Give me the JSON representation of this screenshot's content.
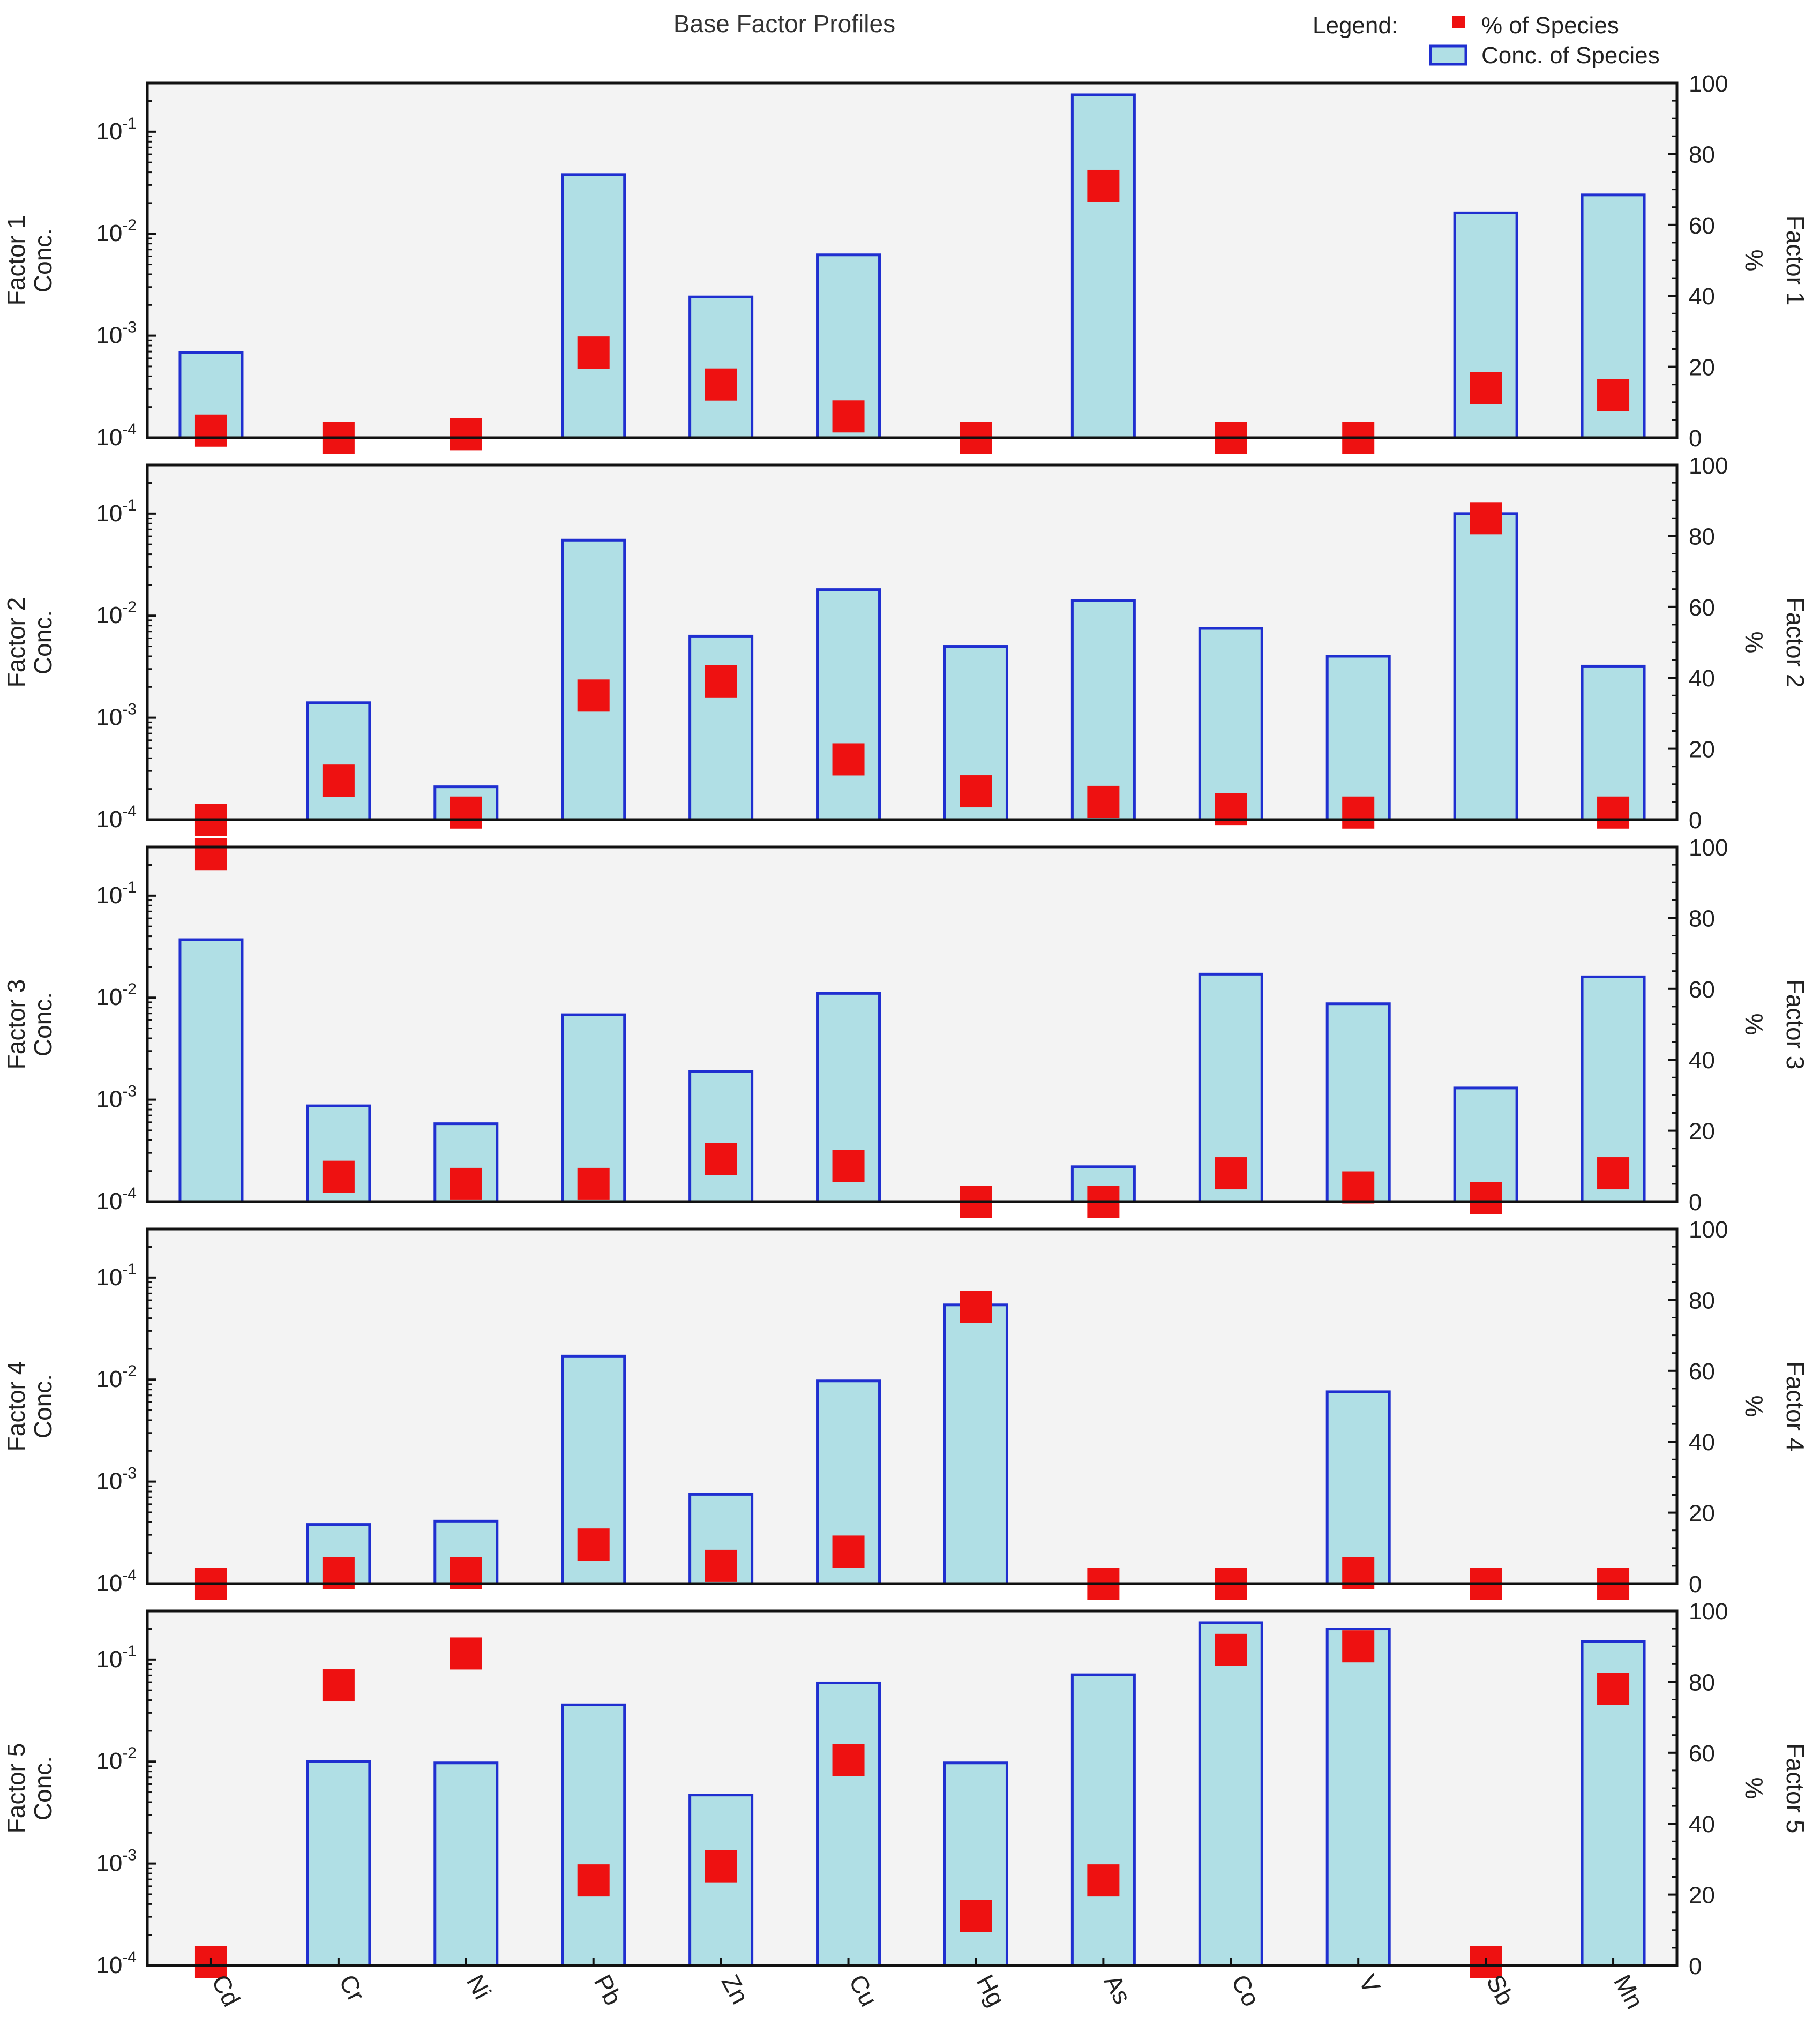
{
  "chart_data": {
    "type": "bar",
    "title": "Base Factor Profiles",
    "legend": {
      "label": "Legend:",
      "items": [
        {
          "name": "% of Species",
          "marker": "square",
          "color": "#ee1111"
        },
        {
          "name": "Conc. of Species",
          "marker": "bar",
          "fill": "#b0dfe5",
          "stroke": "#1f2fd0"
        }
      ],
      "placement": "top-right"
    },
    "categories": [
      "Cd",
      "Cr",
      "Ni",
      "Pb",
      "Zn",
      "Cu",
      "Hg",
      "As",
      "Co",
      "V",
      "Sb",
      "Mn"
    ],
    "left_axis": {
      "scale": "log",
      "range": [
        0.0001,
        0.3
      ],
      "tick_values": [
        0.0001,
        0.001,
        0.01,
        0.1
      ],
      "tick_labels": [
        {
          "base": "10",
          "exp": "-4"
        },
        {
          "base": "10",
          "exp": "-3"
        },
        {
          "base": "10",
          "exp": "-2"
        },
        {
          "base": "10",
          "exp": "-1"
        }
      ]
    },
    "right_axis": {
      "scale": "linear",
      "range": [
        0,
        100
      ],
      "ticks": [
        "0",
        "20",
        "40",
        "60",
        "80",
        "100"
      ],
      "label": "%"
    },
    "panels": [
      {
        "left_label": [
          "Factor 1",
          "Conc."
        ],
        "right_label": "Factor 1",
        "conc": [
          0.00068,
          null,
          null,
          0.038,
          0.0024,
          0.0062,
          null,
          0.23,
          null,
          null,
          0.016,
          0.024
        ],
        "percent": [
          2,
          0,
          1,
          24,
          15,
          6,
          0,
          71,
          0,
          0,
          14,
          12
        ]
      },
      {
        "left_label": [
          "Factor 2",
          "Conc."
        ],
        "right_label": "Factor 2",
        "conc": [
          null,
          0.0014,
          0.00021,
          0.055,
          0.0063,
          0.018,
          0.005,
          0.014,
          0.0075,
          0.004,
          0.1,
          0.0032
        ],
        "percent": [
          0,
          11,
          2,
          35,
          39,
          17,
          8,
          5,
          3,
          2,
          85,
          2
        ]
      },
      {
        "left_label": [
          "Factor 3",
          "Conc."
        ],
        "right_label": "Factor 3",
        "conc": [
          0.037,
          0.00087,
          0.00058,
          0.0068,
          0.0019,
          0.011,
          null,
          0.00022,
          0.017,
          0.0087,
          0.0013,
          0.016
        ],
        "percent": [
          98,
          7,
          5,
          5,
          12,
          10,
          0,
          0,
          8,
          4,
          1,
          8
        ]
      },
      {
        "left_label": [
          "Factor 4",
          "Conc."
        ],
        "right_label": "Factor 4",
        "conc": [
          null,
          0.00038,
          0.00041,
          0.017,
          0.00075,
          0.0097,
          0.054,
          null,
          null,
          0.0076,
          null,
          null
        ],
        "percent": [
          0,
          3,
          3,
          11,
          5,
          9,
          78,
          0,
          0,
          3,
          0,
          0
        ]
      },
      {
        "left_label": [
          "Factor 5",
          "Conc."
        ],
        "right_label": "Factor 5",
        "conc": [
          null,
          0.01,
          0.0097,
          0.036,
          0.0047,
          0.059,
          0.0097,
          0.071,
          0.23,
          0.2,
          null,
          0.15
        ],
        "percent": [
          1,
          79,
          88,
          24,
          28,
          58,
          14,
          24,
          89,
          90,
          1,
          78
        ]
      }
    ]
  }
}
